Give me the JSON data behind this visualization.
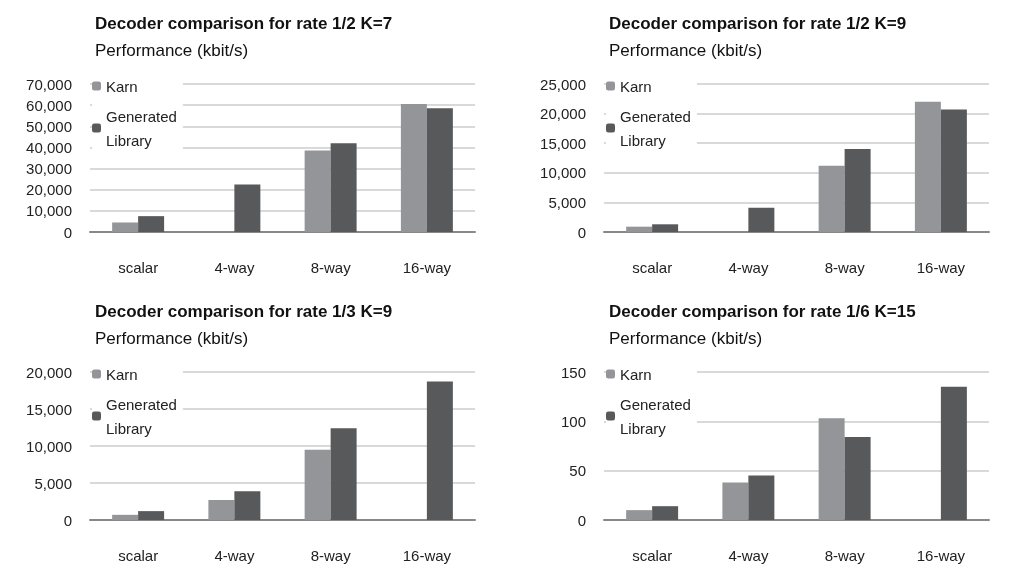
{
  "chart_data": [
    {
      "type": "bar",
      "title": "Decoder comparison for rate 1/2 K=7",
      "subtitle": "Performance (kbit/s)",
      "categories": [
        "scalar",
        "4-way",
        "8-way",
        "16-way"
      ],
      "series": [
        {
          "name": "Karn",
          "color": "#939598",
          "values": [
            4500,
            null,
            38500,
            60500
          ]
        },
        {
          "name": "Generated Library",
          "color": "#58595b",
          "values": [
            7500,
            22500,
            42000,
            58500
          ]
        }
      ],
      "ylim": [
        0,
        70000
      ],
      "yticks": [
        {
          "value": 0,
          "label": "0"
        },
        {
          "value": 10000,
          "label": "10,000"
        },
        {
          "value": 20000,
          "label": "20,000"
        },
        {
          "value": 30000,
          "label": "30,000"
        },
        {
          "value": 40000,
          "label": "40,000"
        },
        {
          "value": 50000,
          "label": "50,000"
        },
        {
          "value": 60000,
          "label": "60,000"
        },
        {
          "value": 70000,
          "label": "70,000"
        }
      ],
      "grid": "y",
      "legend": "top left"
    },
    {
      "type": "bar",
      "title": "Decoder comparison for rate 1/2 K=9",
      "subtitle": "Performance (kbit/s)",
      "categories": [
        "scalar",
        "4-way",
        "8-way",
        "16-way"
      ],
      "series": [
        {
          "name": "Karn",
          "color": "#939598",
          "values": [
            900,
            null,
            11200,
            22000
          ]
        },
        {
          "name": "Generated Library",
          "color": "#58595b",
          "values": [
            1300,
            4100,
            14000,
            20700
          ]
        }
      ],
      "ylim": [
        0,
        25000
      ],
      "yticks": [
        {
          "value": 0,
          "label": "0"
        },
        {
          "value": 5000,
          "label": "5,000"
        },
        {
          "value": 10000,
          "label": "10,000"
        },
        {
          "value": 15000,
          "label": "15,000"
        },
        {
          "value": 20000,
          "label": "20,000"
        },
        {
          "value": 25000,
          "label": "25,000"
        }
      ],
      "grid": "y",
      "legend": "top left"
    },
    {
      "type": "bar",
      "title": "Decoder comparison for rate 1/3 K=9",
      "subtitle": "Performance (kbit/s)",
      "categories": [
        "scalar",
        "4-way",
        "8-way",
        "16-way"
      ],
      "series": [
        {
          "name": "Karn",
          "color": "#939598",
          "values": [
            700,
            2700,
            9500,
            null
          ]
        },
        {
          "name": "Generated Library",
          "color": "#58595b",
          "values": [
            1200,
            3900,
            12400,
            18700
          ]
        }
      ],
      "ylim": [
        0,
        20000
      ],
      "yticks": [
        {
          "value": 0,
          "label": "0"
        },
        {
          "value": 5000,
          "label": "5,000"
        },
        {
          "value": 10000,
          "label": "10,000"
        },
        {
          "value": 15000,
          "label": "15,000"
        },
        {
          "value": 20000,
          "label": "20,000"
        }
      ],
      "grid": "y",
      "legend": "top left"
    },
    {
      "type": "bar",
      "title": "Decoder comparison for rate 1/6 K=15",
      "subtitle": "Performance (kbit/s)",
      "categories": [
        "scalar",
        "4-way",
        "8-way",
        "16-way"
      ],
      "series": [
        {
          "name": "Karn",
          "color": "#939598",
          "values": [
            10,
            38,
            103,
            null
          ]
        },
        {
          "name": "Generated Library",
          "color": "#58595b",
          "values": [
            14,
            45,
            84,
            135
          ]
        }
      ],
      "ylim": [
        0,
        150
      ],
      "yticks": [
        0,
        50,
        100,
        150
      ],
      "grid": "y",
      "legend": "top left"
    }
  ]
}
